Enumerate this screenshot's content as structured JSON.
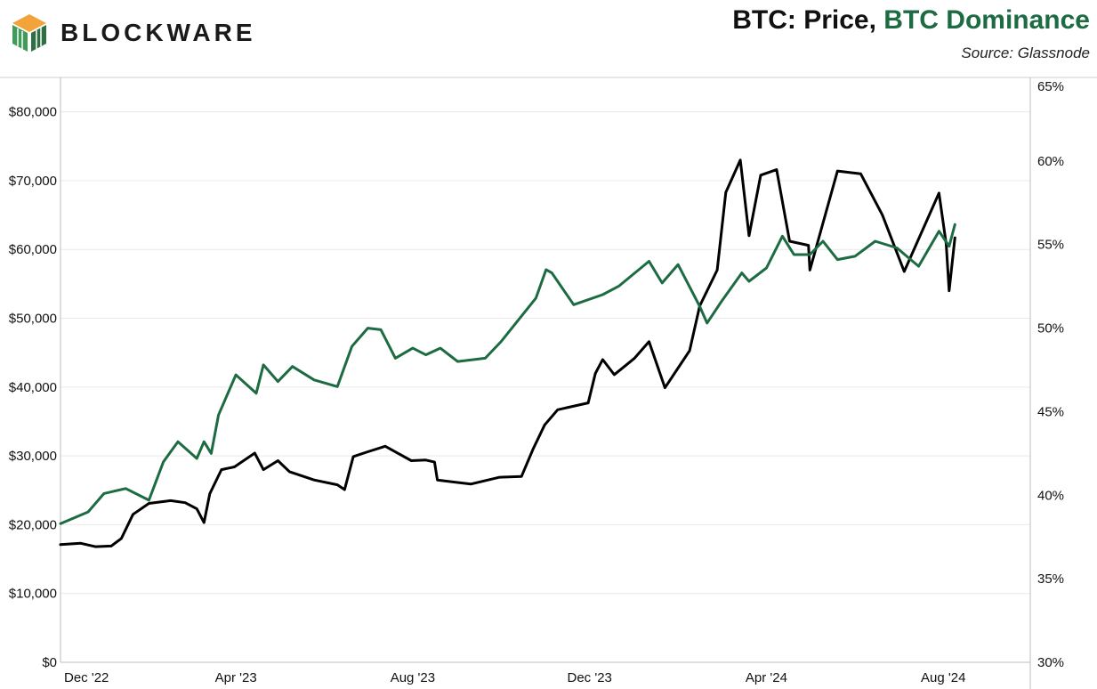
{
  "brand": {
    "name": "BLOCKWARE",
    "logo_colors": [
      "#f2a33a",
      "#3f9b57",
      "#2f6f43"
    ]
  },
  "header": {
    "title_part1": "BTC: Price, ",
    "title_part2": "BTC Dominance",
    "title_colors": {
      "price": "#111111",
      "dominance": "#1d6b43"
    },
    "source": "Source: Glassnode"
  },
  "chart_data": {
    "type": "line",
    "x_axis": {
      "ticks": [
        "Dec '22",
        "Apr '23",
        "Aug '23",
        "Dec '23",
        "Apr '24",
        "Aug '24"
      ],
      "range": [
        "2022-12-01",
        "2024-09-30"
      ]
    },
    "left_axis": {
      "ticks": [
        "$0",
        "$10,000",
        "$20,000",
        "$30,000",
        "$40,000",
        "$50,000",
        "$60,000",
        "$70,000",
        "$80,000"
      ],
      "range": [
        0,
        85000
      ]
    },
    "right_axis": {
      "ticks": [
        "30%",
        "35%",
        "40%",
        "45%",
        "50%",
        "55%",
        "60%",
        "65%"
      ],
      "range": [
        30,
        65
      ]
    },
    "grid": true,
    "series": [
      {
        "axis": "left",
        "color": "#000000",
        "points": [
          [
            "2022-12-01",
            17100
          ],
          [
            "2022-12-15",
            17300
          ],
          [
            "2022-12-25",
            16800
          ],
          [
            "2023-01-05",
            16900
          ],
          [
            "2023-01-12",
            18000
          ],
          [
            "2023-01-20",
            21500
          ],
          [
            "2023-01-31",
            23100
          ],
          [
            "2023-02-15",
            23500
          ],
          [
            "2023-02-25",
            23200
          ],
          [
            "2023-03-05",
            22300
          ],
          [
            "2023-03-10",
            20300
          ],
          [
            "2023-03-14",
            24500
          ],
          [
            "2023-03-22",
            28000
          ],
          [
            "2023-03-31",
            28400
          ],
          [
            "2023-04-14",
            30400
          ],
          [
            "2023-04-20",
            28000
          ],
          [
            "2023-04-30",
            29300
          ],
          [
            "2023-05-08",
            27700
          ],
          [
            "2023-05-25",
            26500
          ],
          [
            "2023-06-10",
            25800
          ],
          [
            "2023-06-15",
            25100
          ],
          [
            "2023-06-21",
            29900
          ],
          [
            "2023-07-01",
            30600
          ],
          [
            "2023-07-13",
            31400
          ],
          [
            "2023-07-31",
            29300
          ],
          [
            "2023-08-10",
            29400
          ],
          [
            "2023-08-16",
            29100
          ],
          [
            "2023-08-18",
            26500
          ],
          [
            "2023-09-10",
            25900
          ],
          [
            "2023-09-30",
            26900
          ],
          [
            "2023-10-15",
            27000
          ],
          [
            "2023-10-23",
            31000
          ],
          [
            "2023-10-31",
            34500
          ],
          [
            "2023-11-09",
            36700
          ],
          [
            "2023-11-30",
            37700
          ],
          [
            "2023-12-05",
            42000
          ],
          [
            "2023-12-10",
            44000
          ],
          [
            "2023-12-18",
            41800
          ],
          [
            "2024-01-01",
            44200
          ],
          [
            "2024-01-11",
            46600
          ],
          [
            "2024-01-22",
            39900
          ],
          [
            "2024-02-08",
            45300
          ],
          [
            "2024-02-15",
            51800
          ],
          [
            "2024-02-27",
            57000
          ],
          [
            "2024-03-04",
            68300
          ],
          [
            "2024-03-14",
            73000
          ],
          [
            "2024-03-20",
            62000
          ],
          [
            "2024-03-28",
            70800
          ],
          [
            "2024-04-08",
            71600
          ],
          [
            "2024-04-17",
            61200
          ],
          [
            "2024-04-30",
            60600
          ],
          [
            "2024-05-01",
            57000
          ],
          [
            "2024-05-20",
            71400
          ],
          [
            "2024-06-05",
            71000
          ],
          [
            "2024-06-20",
            65000
          ],
          [
            "2024-07-05",
            56800
          ],
          [
            "2024-07-29",
            68200
          ],
          [
            "2024-08-03",
            60800
          ],
          [
            "2024-08-05",
            54000
          ],
          [
            "2024-08-09",
            61700
          ]
        ]
      },
      {
        "axis": "right",
        "color": "#1d6b43",
        "points": [
          [
            "2022-12-01",
            38.3
          ],
          [
            "2022-12-20",
            39.0
          ],
          [
            "2022-12-31",
            40.1
          ],
          [
            "2023-01-15",
            40.4
          ],
          [
            "2023-01-31",
            39.7
          ],
          [
            "2023-02-10",
            42.0
          ],
          [
            "2023-02-20",
            43.2
          ],
          [
            "2023-03-05",
            42.2
          ],
          [
            "2023-03-10",
            43.2
          ],
          [
            "2023-03-15",
            42.5
          ],
          [
            "2023-03-20",
            44.8
          ],
          [
            "2023-04-01",
            47.2
          ],
          [
            "2023-04-15",
            46.1
          ],
          [
            "2023-04-20",
            47.8
          ],
          [
            "2023-04-30",
            46.8
          ],
          [
            "2023-05-10",
            47.7
          ],
          [
            "2023-05-25",
            46.9
          ],
          [
            "2023-06-10",
            46.5
          ],
          [
            "2023-06-20",
            48.9
          ],
          [
            "2023-07-01",
            50.0
          ],
          [
            "2023-07-10",
            49.9
          ],
          [
            "2023-07-20",
            48.2
          ],
          [
            "2023-08-01",
            48.8
          ],
          [
            "2023-08-10",
            48.4
          ],
          [
            "2023-08-20",
            48.8
          ],
          [
            "2023-09-01",
            48.0
          ],
          [
            "2023-09-20",
            48.2
          ],
          [
            "2023-10-01",
            49.2
          ],
          [
            "2023-10-25",
            51.8
          ],
          [
            "2023-11-01",
            53.5
          ],
          [
            "2023-11-05",
            53.3
          ],
          [
            "2023-11-20",
            51.4
          ],
          [
            "2023-12-10",
            52.0
          ],
          [
            "2023-12-21",
            52.5
          ],
          [
            "2024-01-11",
            54.0
          ],
          [
            "2024-01-20",
            52.7
          ],
          [
            "2024-01-31",
            53.8
          ],
          [
            "2024-02-15",
            51.3
          ],
          [
            "2024-02-20",
            50.3
          ],
          [
            "2024-03-01",
            51.6
          ],
          [
            "2024-03-15",
            53.3
          ],
          [
            "2024-03-20",
            52.8
          ],
          [
            "2024-04-01",
            53.6
          ],
          [
            "2024-04-12",
            55.5
          ],
          [
            "2024-04-20",
            54.4
          ],
          [
            "2024-05-01",
            54.4
          ],
          [
            "2024-05-10",
            55.2
          ],
          [
            "2024-05-20",
            54.1
          ],
          [
            "2024-06-01",
            54.3
          ],
          [
            "2024-06-15",
            55.2
          ],
          [
            "2024-06-30",
            54.8
          ],
          [
            "2024-07-15",
            53.7
          ],
          [
            "2024-07-29",
            55.8
          ],
          [
            "2024-08-05",
            54.9
          ],
          [
            "2024-08-09",
            56.2
          ]
        ]
      }
    ]
  }
}
